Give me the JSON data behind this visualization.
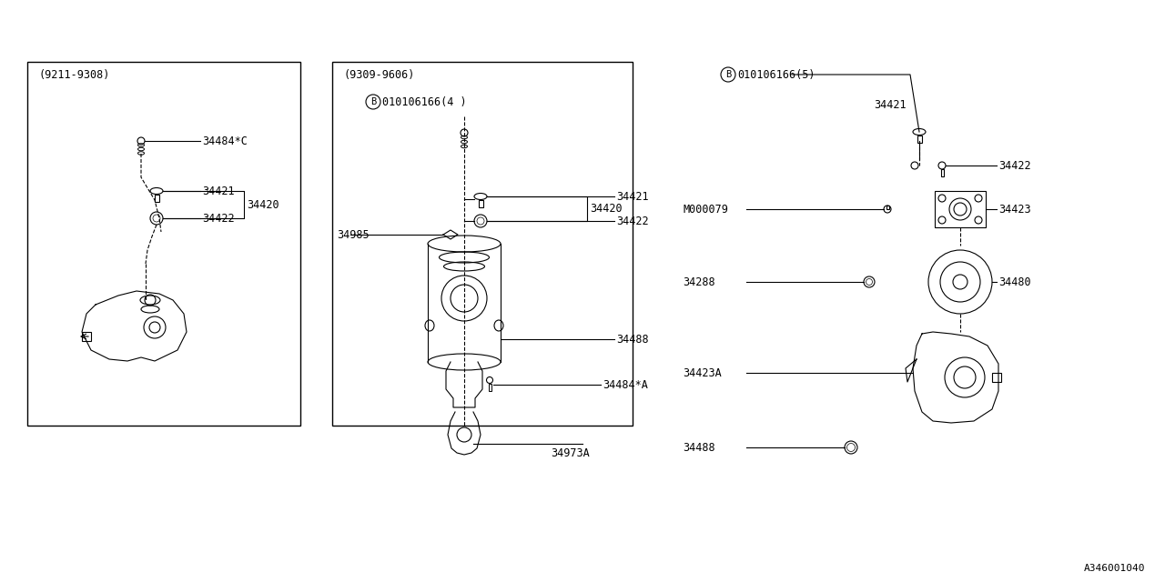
{
  "bg_color": "#ffffff",
  "line_color": "#000000",
  "fig_width": 12.8,
  "fig_height": 6.4,
  "dpi": 100,
  "panel1_label": "(9211-9308)",
  "panel2_label": "(9309-9606)",
  "panel2_badge": "010106166(4 )",
  "panel3_badge": "010106166(5)",
  "watermark": "A346001040",
  "font_size": 8.5
}
